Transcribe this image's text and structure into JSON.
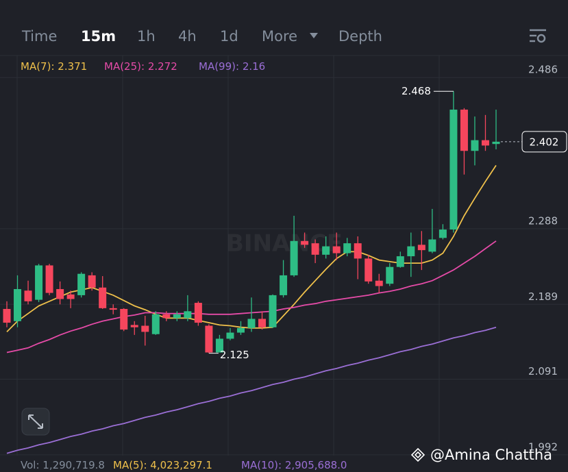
{
  "tabs": {
    "items": [
      "Time",
      "15m",
      "1h",
      "4h",
      "1d",
      "More",
      "Depth"
    ],
    "active": 1
  },
  "watermark": "BINANCE",
  "credit": "@Amina Chattha",
  "volume_legend": [
    {
      "name": "Vol",
      "label": "1,290,719.8",
      "color": "#848e9c"
    },
    {
      "name": "MA(5)",
      "label": "4,023,297.1",
      "color": "#f0c14b"
    },
    {
      "name": "MA(10)",
      "label": "2,905,688.0",
      "color": "#9b6fd6"
    }
  ],
  "chart_data": {
    "type": "candlestick",
    "up_color": "#2ebd85",
    "down_color": "#f6465d",
    "open": [
      2.183,
      2.167,
      2.207,
      2.195,
      2.24,
      2.209,
      2.202,
      2.201,
      2.227,
      2.211,
      2.184,
      2.183,
      2.162,
      2.161,
      2.15,
      2.176,
      2.171,
      2.171,
      2.191,
      2.161,
      2.126,
      2.144,
      2.152,
      2.158,
      2.17,
      2.159,
      2.201,
      2.227,
      2.272,
      2.269,
      2.254,
      2.265,
      2.256,
      2.269,
      2.249,
      2.22,
      2.216,
      2.238,
      2.252,
      2.267,
      2.258,
      2.276,
      2.287,
      2.444,
      2.39,
      2.404,
      2.399
    ],
    "high": [
      2.193,
      2.227,
      2.22,
      2.242,
      2.242,
      2.219,
      2.207,
      2.231,
      2.231,
      2.226,
      2.189,
      2.184,
      2.167,
      2.174,
      2.18,
      2.18,
      2.18,
      2.201,
      2.193,
      2.163,
      2.149,
      2.158,
      2.167,
      2.198,
      2.18,
      2.202,
      2.247,
      2.305,
      2.283,
      2.274,
      2.278,
      2.283,
      2.276,
      2.278,
      2.254,
      2.229,
      2.243,
      2.258,
      2.283,
      2.285,
      2.314,
      2.294,
      2.468,
      2.446,
      2.435,
      2.437,
      2.444
    ],
    "low": [
      2.159,
      2.159,
      2.189,
      2.192,
      2.201,
      2.189,
      2.184,
      2.198,
      2.207,
      2.183,
      2.176,
      2.154,
      2.149,
      2.135,
      2.149,
      2.167,
      2.167,
      2.167,
      2.161,
      2.125,
      2.126,
      2.142,
      2.149,
      2.153,
      2.156,
      2.158,
      2.198,
      2.225,
      2.263,
      2.243,
      2.249,
      2.247,
      2.252,
      2.222,
      2.216,
      2.204,
      2.213,
      2.237,
      2.225,
      2.234,
      2.256,
      2.274,
      2.283,
      2.359,
      2.371,
      2.39,
      2.392
    ],
    "close": [
      2.165,
      2.209,
      2.193,
      2.24,
      2.204,
      2.196,
      2.196,
      2.229,
      2.211,
      2.184,
      2.182,
      2.156,
      2.159,
      2.153,
      2.176,
      2.171,
      2.176,
      2.18,
      2.165,
      2.126,
      2.144,
      2.152,
      2.158,
      2.17,
      2.159,
      2.201,
      2.227,
      2.272,
      2.267,
      2.254,
      2.265,
      2.256,
      2.269,
      2.249,
      2.219,
      2.213,
      2.238,
      2.252,
      2.265,
      2.26,
      2.274,
      2.287,
      2.444,
      2.39,
      2.404,
      2.397,
      2.402
    ],
    "series": [
      {
        "name": "MA(7)",
        "current": 2.371,
        "color": "#f0c14b",
        "values": [
          2.153,
          2.167,
          2.177,
          2.187,
          2.193,
          2.199,
          2.205,
          2.208,
          2.211,
          2.206,
          2.201,
          2.194,
          2.187,
          2.182,
          2.176,
          2.171,
          2.171,
          2.171,
          2.168,
          2.165,
          2.162,
          2.161,
          2.159,
          2.158,
          2.158,
          2.159,
          2.174,
          2.189,
          2.205,
          2.22,
          2.235,
          2.249,
          2.258,
          2.258,
          2.253,
          2.247,
          2.245,
          2.243,
          2.243,
          2.243,
          2.247,
          2.256,
          2.278,
          2.305,
          2.328,
          2.35,
          2.371
        ]
      },
      {
        "name": "MA(25)",
        "current": 2.272,
        "color": "#e64ba8",
        "values": [
          2.126,
          2.129,
          2.132,
          2.138,
          2.143,
          2.149,
          2.154,
          2.158,
          2.163,
          2.167,
          2.17,
          2.173,
          2.175,
          2.178,
          2.178,
          2.177,
          2.177,
          2.177,
          2.177,
          2.176,
          2.176,
          2.176,
          2.177,
          2.178,
          2.179,
          2.18,
          2.183,
          2.185,
          2.188,
          2.19,
          2.193,
          2.195,
          2.197,
          2.199,
          2.201,
          2.204,
          2.206,
          2.209,
          2.213,
          2.216,
          2.22,
          2.227,
          2.234,
          2.243,
          2.252,
          2.262,
          2.272
        ]
      },
      {
        "name": "MA(99)",
        "current": 2.16,
        "color": "#9b6fd6",
        "values": [
          1.994,
          1.998,
          2.001,
          2.005,
          2.008,
          2.012,
          2.016,
          2.019,
          2.023,
          2.026,
          2.03,
          2.033,
          2.037,
          2.041,
          2.044,
          2.048,
          2.051,
          2.055,
          2.059,
          2.062,
          2.066,
          2.069,
          2.073,
          2.076,
          2.08,
          2.084,
          2.087,
          2.091,
          2.094,
          2.098,
          2.102,
          2.105,
          2.109,
          2.112,
          2.116,
          2.119,
          2.123,
          2.127,
          2.13,
          2.134,
          2.137,
          2.141,
          2.145,
          2.148,
          2.152,
          2.155,
          2.159
        ]
      }
    ],
    "ylim": [
      1.991,
      2.514
    ],
    "yticks": [
      2.486,
      2.288,
      2.189,
      2.091,
      1.992
    ],
    "grid": true
  }
}
